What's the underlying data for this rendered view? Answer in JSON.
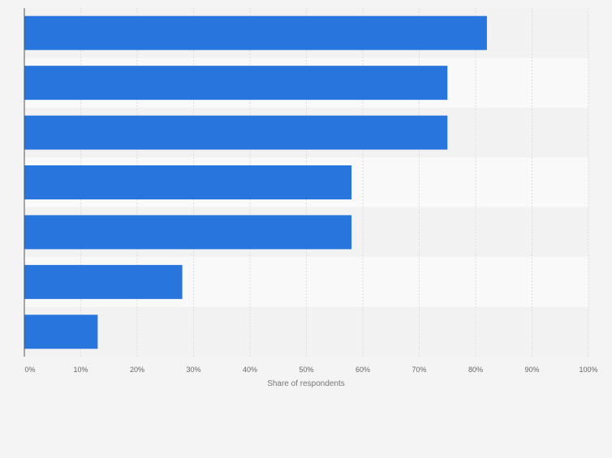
{
  "chart_data": {
    "type": "bar",
    "orientation": "horizontal",
    "title": "",
    "categories": [
      "",
      "",
      "",
      "",
      "",
      "",
      ""
    ],
    "values": [
      82,
      75,
      75,
      58,
      58,
      28,
      13
    ],
    "xlabel": "Share of respondents",
    "ylabel": "",
    "xlim": [
      0,
      100
    ],
    "ticks": [
      0,
      10,
      20,
      30,
      40,
      50,
      60,
      70,
      80,
      90,
      100
    ],
    "tick_labels": [
      "0%",
      "10%",
      "20%",
      "30%",
      "40%",
      "50%",
      "60%",
      "70%",
      "80%",
      "90%",
      "100%"
    ],
    "grid": true,
    "legend": "none",
    "colors": {
      "bar": "#2876dd",
      "band_dark": "#f2f2f2",
      "band_light": "#f9f9f9",
      "gridline": "#dcdcdc",
      "axis": "#555555",
      "tick_text": "#666666",
      "label_text": "#777777"
    }
  }
}
